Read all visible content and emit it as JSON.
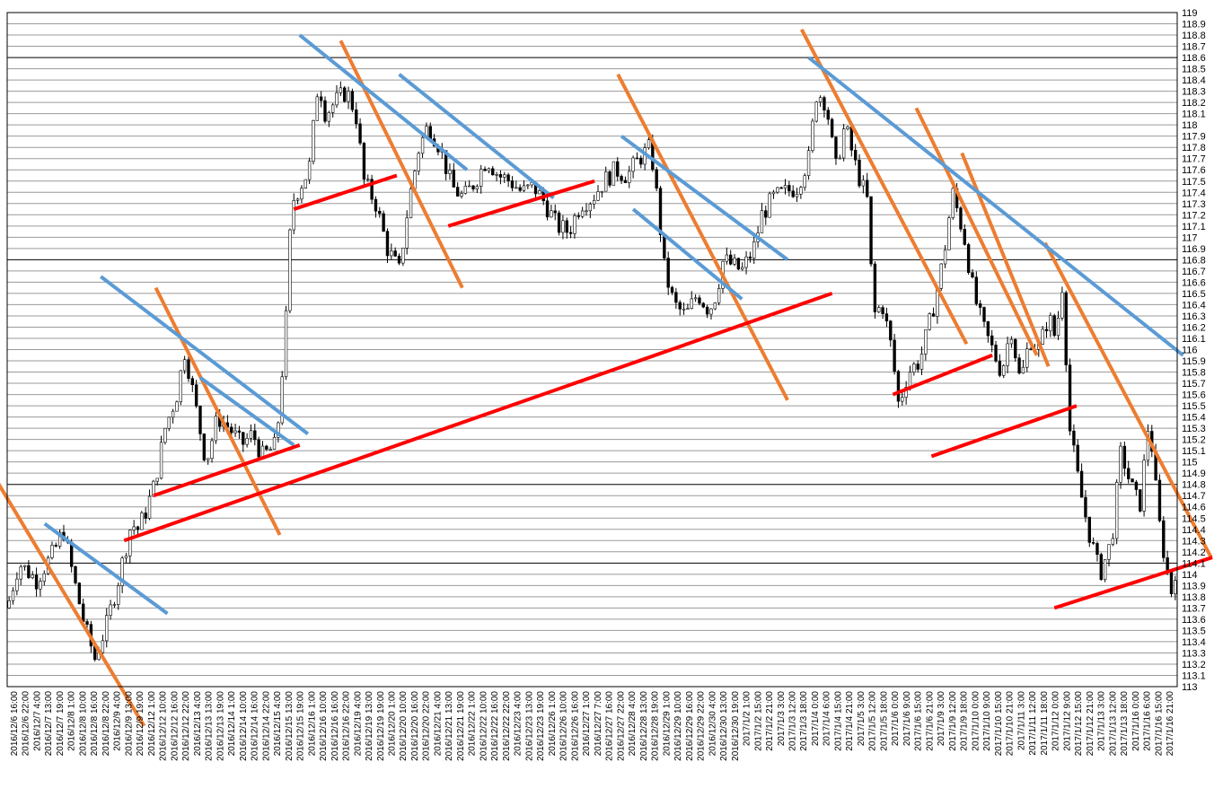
{
  "chart_data": {
    "type": "candlestick",
    "ylim": [
      113,
      119
    ],
    "y_ticks": [
      "119",
      "118.9",
      "118.8",
      "118.7",
      "118.6",
      "118.5",
      "118.4",
      "118.3",
      "118.2",
      "118.1",
      "118",
      "117.9",
      "117.8",
      "117.7",
      "117.6",
      "117.5",
      "117.4",
      "117.3",
      "117.2",
      "117.1",
      "117",
      "116.9",
      "116.8",
      "116.7",
      "116.6",
      "116.5",
      "116.4",
      "116.3",
      "116.2",
      "116.1",
      "116",
      "115.9",
      "115.8",
      "115.7",
      "115.6",
      "115.5",
      "115.4",
      "115.3",
      "115.2",
      "115.1",
      "115",
      "114.9",
      "114.8",
      "114.7",
      "114.6",
      "114.5",
      "114.4",
      "114.3",
      "114.2",
      "114.1",
      "114",
      "113.9",
      "113.8",
      "113.7",
      "113.6",
      "113.5",
      "113.4",
      "113.3",
      "113.2",
      "113.1",
      "113"
    ],
    "major_grid": [
      118.6,
      116.8,
      114.8,
      114.1
    ],
    "x_labels": [
      "2016/12/6 16:00",
      "2016/12/6 22:00",
      "2016/12/7 4:00",
      "2016/12/7 13:00",
      "2016/12/7 19:00",
      "2016/12/8 1:00",
      "2016/12/8 10:00",
      "2016/12/8 16:00",
      "2016/12/8 22:00",
      "2016/12/9 4:00",
      "2016/12/9 13:00",
      "2016/12/9 19:00",
      "2016/12/12 1:00",
      "2016/12/12 10:00",
      "2016/12/12 16:00",
      "2016/12/12 22:00",
      "2016/12/13 4:00",
      "2016/12/13 13:00",
      "2016/12/13 19:00",
      "2016/12/14 1:00",
      "2016/12/14 10:00",
      "2016/12/14 16:00",
      "2016/12/14 22:00",
      "2016/12/15 4:00",
      "2016/12/15 13:00",
      "2016/12/15 19:00",
      "2016/12/16 1:00",
      "2016/12/16 10:00",
      "2016/12/16 16:00",
      "2016/12/16 22:00",
      "2016/12/19 4:00",
      "2016/12/19 13:00",
      "2016/12/19 19:00",
      "2016/12/20 1:00",
      "2016/12/20 10:00",
      "2016/12/20 16:00",
      "2016/12/20 22:00",
      "2016/12/21 4:00",
      "2016/12/21 13:00",
      "2016/12/21 19:00",
      "2016/12/22 1:00",
      "2016/12/22 10:00",
      "2016/12/22 16:00",
      "2016/12/22 22:00",
      "2016/12/23 4:00",
      "2016/12/23 13:00",
      "2016/12/23 19:00",
      "2016/12/26 1:00",
      "2016/12/26 10:00",
      "2016/12/26 16:00",
      "2016/12/27 1:00",
      "2016/12/27 7:00",
      "2016/12/27 16:00",
      "2016/12/27 22:00",
      "2016/12/28 4:00",
      "2016/12/28 13:00",
      "2016/12/28 19:00",
      "2016/12/29 1:00",
      "2016/12/29 10:00",
      "2016/12/29 16:00",
      "2016/12/29 22:00",
      "2016/12/30 4:00",
      "2016/12/30 13:00",
      "2016/12/30 19:00",
      "2017/1/2 1:00",
      "2017/1/2 15:00",
      "2017/1/2 21:00",
      "2017/1/3 3:00",
      "2017/1/3 12:00",
      "2017/1/3 18:00",
      "2017/1/4 0:00",
      "2017/1/4 6:00",
      "2017/1/4 15:00",
      "2017/1/4 21:00",
      "2017/1/5 3:00",
      "2017/1/5 12:00",
      "2017/1/5 18:00",
      "2017/1/6 0:00",
      "2017/1/6 9:00",
      "2017/1/6 15:00",
      "2017/1/6 21:00",
      "2017/1/9 3:00",
      "2017/1/9 12:00",
      "2017/1/9 18:00",
      "2017/1/10 0:00",
      "2017/1/10 9:00",
      "2017/1/10 15:00",
      "2017/1/10 21:00",
      "2017/1/11 3:00",
      "2017/1/11 12:00",
      "2017/1/11 18:00",
      "2017/1/12 0:00",
      "2017/1/12 9:00",
      "2017/1/12 15:00",
      "2017/1/12 21:00",
      "2017/1/13 3:00",
      "2017/1/13 12:00",
      "2017/1/13 18:00",
      "2017/1/16 0:00",
      "2017/1/16 6:00",
      "2017/1/16 15:00",
      "2017/1/16 21:00"
    ],
    "price_path": [
      [
        0,
        113.7
      ],
      [
        0.01,
        114.1
      ],
      [
        0.025,
        113.95
      ],
      [
        0.04,
        114.2
      ],
      [
        0.048,
        114.4
      ],
      [
        0.056,
        114.0
      ],
      [
        0.066,
        113.55
      ],
      [
        0.075,
        113.25
      ],
      [
        0.085,
        113.55
      ],
      [
        0.095,
        113.95
      ],
      [
        0.106,
        114.45
      ],
      [
        0.112,
        114.4
      ],
      [
        0.118,
        114.55
      ],
      [
        0.126,
        114.8
      ],
      [
        0.135,
        115.3
      ],
      [
        0.145,
        115.6
      ],
      [
        0.152,
        116.0
      ],
      [
        0.16,
        115.55
      ],
      [
        0.17,
        115.0
      ],
      [
        0.18,
        115.4
      ],
      [
        0.19,
        115.3
      ],
      [
        0.2,
        115.15
      ],
      [
        0.21,
        115.25
      ],
      [
        0.218,
        115.05
      ],
      [
        0.23,
        115.15
      ],
      [
        0.238,
        116.2
      ],
      [
        0.243,
        117.3
      ],
      [
        0.25,
        117.45
      ],
      [
        0.258,
        117.6
      ],
      [
        0.266,
        118.4
      ],
      [
        0.272,
        118.1
      ],
      [
        0.28,
        118.2
      ],
      [
        0.29,
        118.3
      ],
      [
        0.298,
        118.1
      ],
      [
        0.305,
        117.5
      ],
      [
        0.315,
        117.3
      ],
      [
        0.325,
        116.9
      ],
      [
        0.335,
        116.7
      ],
      [
        0.343,
        117.3
      ],
      [
        0.352,
        117.8
      ],
      [
        0.36,
        118.0
      ],
      [
        0.37,
        117.8
      ],
      [
        0.38,
        117.45
      ],
      [
        0.39,
        117.35
      ],
      [
        0.4,
        117.5
      ],
      [
        0.41,
        117.7
      ],
      [
        0.42,
        117.55
      ],
      [
        0.43,
        117.5
      ],
      [
        0.44,
        117.4
      ],
      [
        0.45,
        117.45
      ],
      [
        0.46,
        117.3
      ],
      [
        0.47,
        117.1
      ],
      [
        0.48,
        117.05
      ],
      [
        0.49,
        117.3
      ],
      [
        0.5,
        117.35
      ],
      [
        0.51,
        117.5
      ],
      [
        0.52,
        117.6
      ],
      [
        0.53,
        117.55
      ],
      [
        0.54,
        117.7
      ],
      [
        0.55,
        117.8
      ],
      [
        0.556,
        117.3
      ],
      [
        0.562,
        116.7
      ],
      [
        0.57,
        116.4
      ],
      [
        0.58,
        116.3
      ],
      [
        0.59,
        116.5
      ],
      [
        0.6,
        116.35
      ],
      [
        0.606,
        116.5
      ],
      [
        0.612,
        116.8
      ],
      [
        0.62,
        116.75
      ],
      [
        0.628,
        116.7
      ],
      [
        0.638,
        116.9
      ],
      [
        0.645,
        117.2
      ],
      [
        0.655,
        117.35
      ],
      [
        0.665,
        117.4
      ],
      [
        0.675,
        117.45
      ],
      [
        0.685,
        117.7
      ],
      [
        0.692,
        118.3
      ],
      [
        0.7,
        118.2
      ],
      [
        0.708,
        117.6
      ],
      [
        0.716,
        118.0
      ],
      [
        0.726,
        117.6
      ],
      [
        0.736,
        117.3
      ],
      [
        0.74,
        116.3
      ],
      [
        0.748,
        116.4
      ],
      [
        0.756,
        116.0
      ],
      [
        0.762,
        115.5
      ],
      [
        0.77,
        115.8
      ],
      [
        0.78,
        115.9
      ],
      [
        0.79,
        116.3
      ],
      [
        0.8,
        116.8
      ],
      [
        0.808,
        117.4
      ],
      [
        0.818,
        117.0
      ],
      [
        0.826,
        116.5
      ],
      [
        0.834,
        116.2
      ],
      [
        0.842,
        116.0
      ],
      [
        0.85,
        115.8
      ],
      [
        0.858,
        116.2
      ],
      [
        0.866,
        115.7
      ],
      [
        0.874,
        116.1
      ],
      [
        0.882,
        116.0
      ],
      [
        0.89,
        116.3
      ],
      [
        0.896,
        116.1
      ],
      [
        0.902,
        116.6
      ],
      [
        0.908,
        115.3
      ],
      [
        0.916,
        114.8
      ],
      [
        0.924,
        114.4
      ],
      [
        0.934,
        114.0
      ],
      [
        0.944,
        114.3
      ],
      [
        0.952,
        115.1
      ],
      [
        0.96,
        114.8
      ],
      [
        0.968,
        114.6
      ],
      [
        0.976,
        115.4
      ],
      [
        0.984,
        114.5
      ],
      [
        0.99,
        114.1
      ],
      [
        0.996,
        113.8
      ],
      [
        1.0,
        114.2
      ]
    ],
    "trendlines": [
      {
        "color": "#ed7d31",
        "from": [
          -0.01,
          114.85
        ],
        "to": [
          0.117,
          112.65
        ]
      },
      {
        "color": "#ed7d31",
        "from": [
          0.127,
          116.55
        ],
        "to": [
          0.233,
          114.35
        ]
      },
      {
        "color": "#ed7d31",
        "from": [
          0.285,
          118.75
        ],
        "to": [
          0.389,
          116.55
        ]
      },
      {
        "color": "#ed7d31",
        "from": [
          0.522,
          118.45
        ],
        "to": [
          0.667,
          115.55
        ]
      },
      {
        "color": "#ed7d31",
        "from": [
          0.679,
          118.85
        ],
        "to": [
          0.82,
          116.05
        ]
      },
      {
        "color": "#ed7d31",
        "from": [
          0.777,
          118.15
        ],
        "to": [
          0.88,
          115.95
        ]
      },
      {
        "color": "#ed7d31",
        "from": [
          0.816,
          117.75
        ],
        "to": [
          0.89,
          115.85
        ]
      },
      {
        "color": "#ed7d31",
        "from": [
          0.887,
          116.95
        ],
        "to": [
          1.029,
          114.15
        ]
      },
      {
        "color": "#5b9bd5",
        "from": [
          0.032,
          114.45
        ],
        "to": [
          0.137,
          113.65
        ]
      },
      {
        "color": "#5b9bd5",
        "from": [
          0.08,
          116.65
        ],
        "to": [
          0.257,
          115.25
        ]
      },
      {
        "color": "#5b9bd5",
        "from": [
          0.165,
          115.75
        ],
        "to": [
          0.245,
          115.15
        ]
      },
      {
        "color": "#5b9bd5",
        "from": [
          0.25,
          118.8
        ],
        "to": [
          0.393,
          117.6
        ]
      },
      {
        "color": "#5b9bd5",
        "from": [
          0.335,
          118.45
        ],
        "to": [
          0.467,
          117.35
        ]
      },
      {
        "color": "#5b9bd5",
        "from": [
          0.525,
          117.9
        ],
        "to": [
          0.667,
          116.8
        ]
      },
      {
        "color": "#5b9bd5",
        "from": [
          0.535,
          117.25
        ],
        "to": [
          0.628,
          116.45
        ]
      },
      {
        "color": "#5b9bd5",
        "from": [
          0.685,
          118.6
        ],
        "to": [
          1.005,
          115.95
        ]
      },
      {
        "color": "#ff0000",
        "from": [
          0.1,
          114.3
        ],
        "to": [
          0.705,
          116.5
        ]
      },
      {
        "color": "#ff0000",
        "from": [
          0.125,
          114.7
        ],
        "to": [
          0.25,
          115.15
        ]
      },
      {
        "color": "#ff0000",
        "from": [
          0.245,
          117.25
        ],
        "to": [
          0.333,
          117.55
        ]
      },
      {
        "color": "#ff0000",
        "from": [
          0.377,
          117.1
        ],
        "to": [
          0.502,
          117.5
        ]
      },
      {
        "color": "#ff0000",
        "from": [
          0.757,
          115.6
        ],
        "to": [
          0.842,
          115.95
        ]
      },
      {
        "color": "#ff0000",
        "from": [
          0.79,
          115.05
        ],
        "to": [
          0.914,
          115.5
        ]
      },
      {
        "color": "#ff0000",
        "from": [
          0.895,
          113.7
        ],
        "to": [
          1.03,
          114.15
        ]
      }
    ]
  }
}
